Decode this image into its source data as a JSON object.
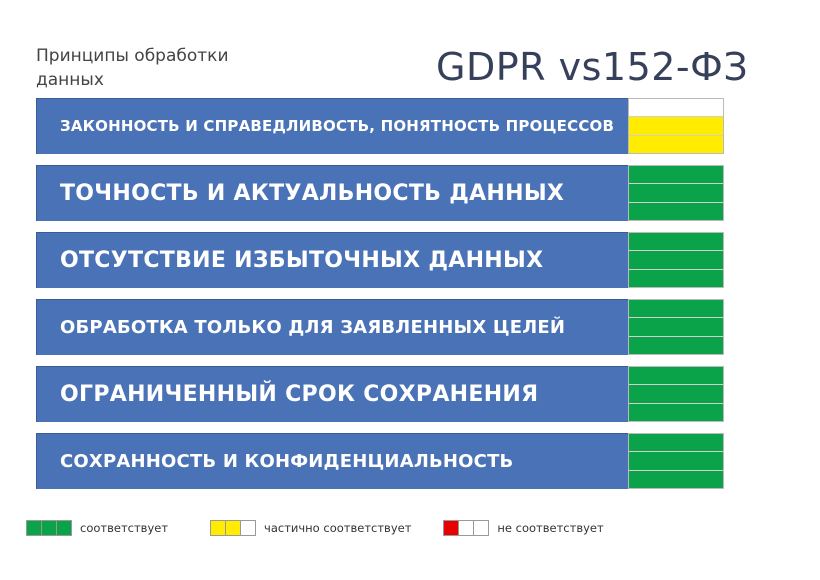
{
  "header": {
    "subtitle": "Принципы обработки данных",
    "title": "GDPR vs152-ФЗ"
  },
  "colors": {
    "banner": "#4a72b6",
    "green": "#0aa34a",
    "yellow": "#ffec00",
    "red": "#e60000",
    "white": "#ffffff"
  },
  "principles": [
    {
      "label": "Законность и справедливость, понятность процессов",
      "size": "small",
      "status": [
        "white",
        "yellow",
        "yellow"
      ]
    },
    {
      "label": "Точность и актуальность данных",
      "size": "large",
      "status": [
        "green",
        "green",
        "green"
      ]
    },
    {
      "label": "Отсутствие избыточных данных",
      "size": "large",
      "status": [
        "green",
        "green",
        "green"
      ]
    },
    {
      "label": "Обработка только для заявленных целей",
      "size": "medium",
      "status": [
        "green",
        "green",
        "green"
      ]
    },
    {
      "label": "Ограниченный срок сохранения",
      "size": "large",
      "status": [
        "green",
        "green",
        "green"
      ]
    },
    {
      "label": "Сохранность и конфиденциальность",
      "size": "medium",
      "status": [
        "green",
        "green",
        "green"
      ]
    }
  ],
  "legend": [
    {
      "label": "соответствует",
      "swatches": [
        "green",
        "green",
        "green"
      ]
    },
    {
      "label": "частично соответствует",
      "swatches": [
        "yellow",
        "yellow",
        "white"
      ]
    },
    {
      "label": "не соответствует",
      "swatches": [
        "red",
        "white",
        "white"
      ]
    }
  ]
}
